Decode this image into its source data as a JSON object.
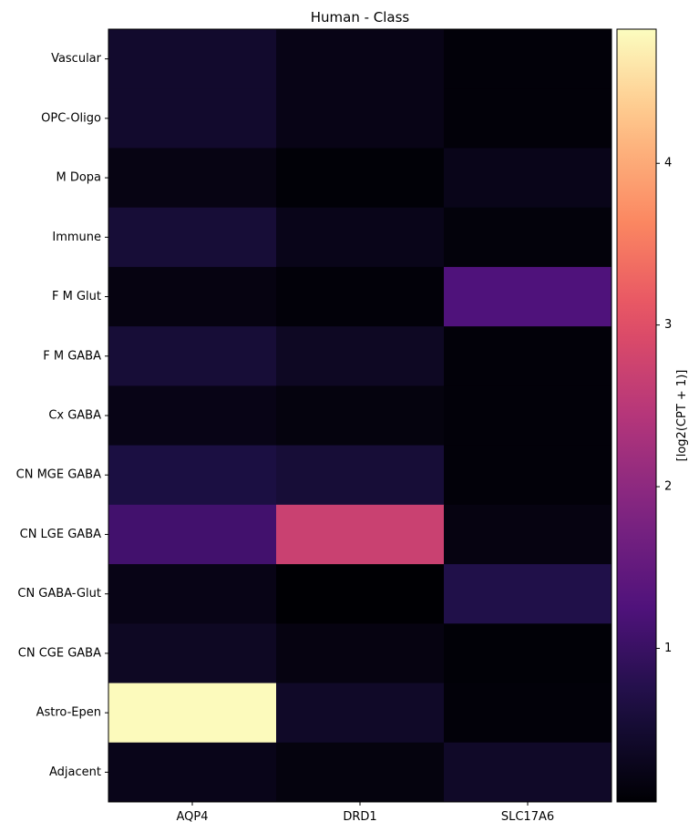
{
  "chart_data": {
    "type": "heatmap",
    "title": "Human - Class",
    "rows": [
      "Vascular",
      "OPC-Oligo",
      "M Dopa",
      "Immune",
      "F M Glut",
      "F M GABA",
      "Cx GABA",
      "CN MGE GABA",
      "CN LGE GABA",
      "CN GABA-Glut",
      "CN CGE GABA",
      "Astro-Epen",
      "Adjacent"
    ],
    "columns": [
      "AQP4",
      "DRD1",
      "SLC17A6"
    ],
    "values": [
      [
        0.45,
        0.22,
        0.1
      ],
      [
        0.45,
        0.22,
        0.1
      ],
      [
        0.2,
        0.08,
        0.25
      ],
      [
        0.55,
        0.25,
        0.12
      ],
      [
        0.18,
        0.1,
        1.25
      ],
      [
        0.55,
        0.35,
        0.1
      ],
      [
        0.22,
        0.15,
        0.1
      ],
      [
        0.65,
        0.55,
        0.1
      ],
      [
        1.1,
        2.7,
        0.18
      ],
      [
        0.22,
        0.05,
        0.72
      ],
      [
        0.35,
        0.18,
        0.08
      ],
      [
        4.8,
        0.4,
        0.1
      ],
      [
        0.25,
        0.15,
        0.4
      ]
    ],
    "colormap": "magma",
    "vmin": 0.05,
    "vmax": 4.83,
    "colorbar": {
      "label": "[log2(CPT + 1)]",
      "ticks": [
        1,
        2,
        3,
        4
      ],
      "tick_labels": [
        "1",
        "2",
        "3",
        "4"
      ]
    }
  }
}
